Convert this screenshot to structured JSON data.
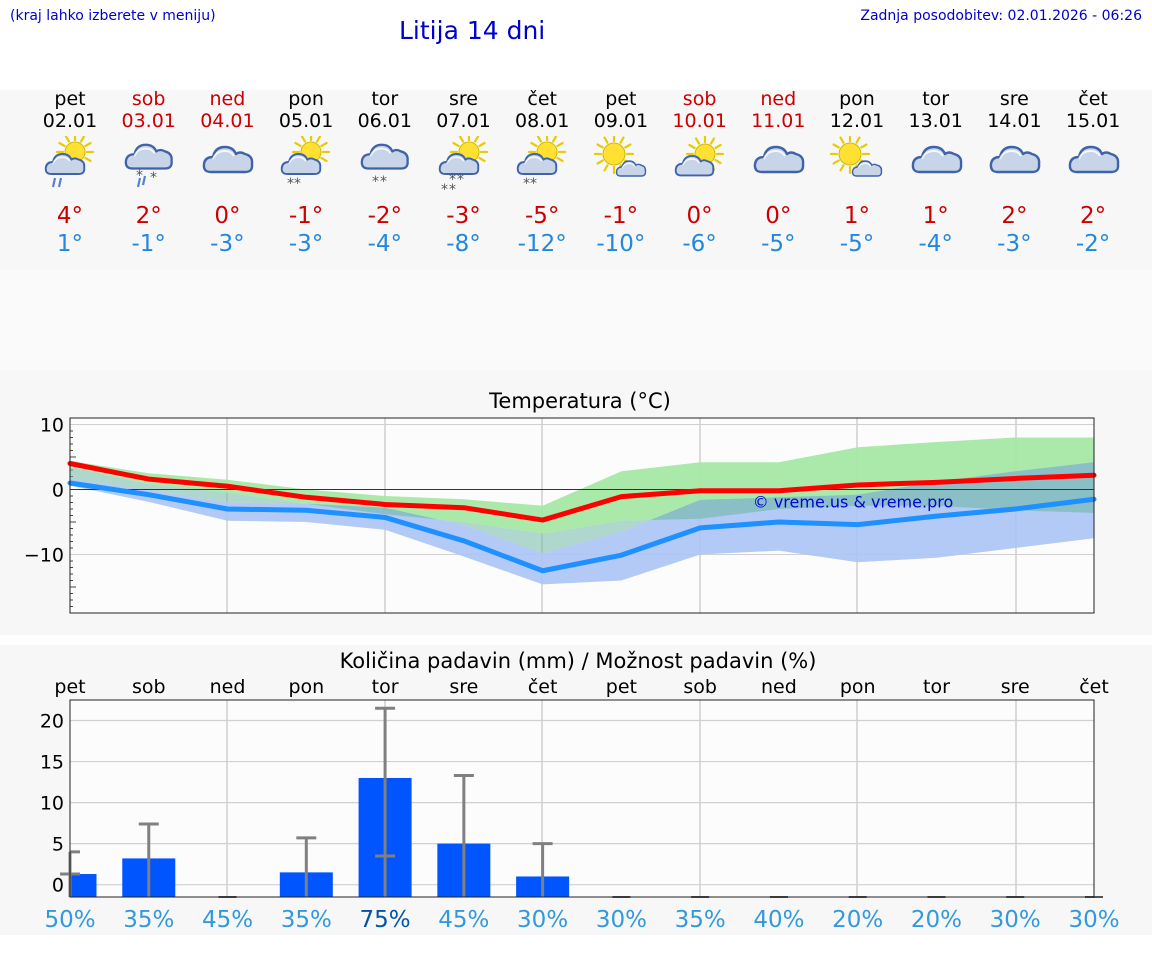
{
  "header": {
    "hint": "(kraj lahko izberete v meniju)",
    "title": "Litija 14 dni",
    "updated": "Zadnja posodobitev: 02.01.2026 - 06:26"
  },
  "days": [
    {
      "name": "pet",
      "date": "02.01",
      "weekend": false,
      "icon": "sun-cloud-rain-icon",
      "tmax": "4°",
      "tmin": "1°"
    },
    {
      "name": "sob",
      "date": "03.01",
      "weekend": true,
      "icon": "cloud-sleet-icon",
      "tmax": "2°",
      "tmin": "-1°"
    },
    {
      "name": "ned",
      "date": "04.01",
      "weekend": true,
      "icon": "cloud-icon",
      "tmax": "0°",
      "tmin": "-3°"
    },
    {
      "name": "pon",
      "date": "05.01",
      "weekend": false,
      "icon": "sun-cloud-snow-icon",
      "tmax": "-1°",
      "tmin": "-3°"
    },
    {
      "name": "tor",
      "date": "06.01",
      "weekend": false,
      "icon": "cloud-snow-icon",
      "tmax": "-2°",
      "tmin": "-4°"
    },
    {
      "name": "sre",
      "date": "07.01",
      "weekend": false,
      "icon": "sun-cloud-heavy-snow-icon",
      "tmax": "-3°",
      "tmin": "-8°"
    },
    {
      "name": "čet",
      "date": "08.01",
      "weekend": false,
      "icon": "sun-cloud-snow-icon",
      "tmax": "-5°",
      "tmin": "-12°"
    },
    {
      "name": "pet",
      "date": "09.01",
      "weekend": false,
      "icon": "sun-small-cloud-icon",
      "tmax": "-1°",
      "tmin": "-10°"
    },
    {
      "name": "sob",
      "date": "10.01",
      "weekend": true,
      "icon": "sun-cloud-icon",
      "tmax": "0°",
      "tmin": "-6°"
    },
    {
      "name": "ned",
      "date": "11.01",
      "weekend": true,
      "icon": "cloud-icon",
      "tmax": "0°",
      "tmin": "-5°"
    },
    {
      "name": "pon",
      "date": "12.01",
      "weekend": false,
      "icon": "sun-small-cloud-icon",
      "tmax": "1°",
      "tmin": "-5°"
    },
    {
      "name": "tor",
      "date": "13.01",
      "weekend": false,
      "icon": "cloud-icon",
      "tmax": "1°",
      "tmin": "-4°"
    },
    {
      "name": "sre",
      "date": "14.01",
      "weekend": false,
      "icon": "cloud-icon",
      "tmax": "2°",
      "tmin": "-3°"
    },
    {
      "name": "čet",
      "date": "15.01",
      "weekend": false,
      "icon": "cloud-icon",
      "tmax": "2°",
      "tmin": "-2°"
    }
  ],
  "colors": {
    "max": "#ff0000",
    "min": "#1e90ff",
    "max_band": "#a6e8a6",
    "min_band": "#aac4f4",
    "bar": "#0055ff",
    "whisker": "#808080",
    "weekend": "#cc0000",
    "link": "#0000cc"
  },
  "chart_data": [
    {
      "type": "line",
      "title": "Temperatura (°C)",
      "watermark": "© vreme.us & vreme.pro",
      "ylim": [
        -19,
        11
      ],
      "yticks": [
        10,
        0,
        -10
      ],
      "ytick_labels": [
        "10",
        "0",
        "−10"
      ],
      "grid": true,
      "series": [
        {
          "name": "max",
          "values": [
            4,
            1.6,
            0.5,
            -1.2,
            -2.3,
            -2.8,
            -4.7,
            -1.1,
            -0.2,
            -0.2,
            0.7,
            1.1,
            1.7,
            2.2
          ]
        },
        {
          "name": "min",
          "values": [
            1,
            -0.8,
            -3,
            -3.2,
            -4.3,
            -7.9,
            -12.5,
            -10.1,
            -5.9,
            -5,
            -5.4,
            -4.1,
            -3,
            -1.5
          ]
        }
      ],
      "bands": [
        {
          "name": "max_range",
          "upper": [
            4.4,
            2.5,
            1.5,
            0,
            -1,
            -1.5,
            -2.5,
            2.8,
            4.2,
            4.2,
            6.5,
            7.3,
            8,
            8
          ],
          "lower": [
            3.5,
            0.8,
            -0.5,
            -2.2,
            -3.8,
            -5,
            -6.8,
            -4.8,
            -4.5,
            -3,
            -2.5,
            -2.5,
            -3.2,
            -3.6
          ]
        },
        {
          "name": "min_range",
          "upper": [
            1.6,
            -0.1,
            -2,
            -2.2,
            -2.8,
            -5.5,
            -9.8,
            -6.5,
            -1.6,
            -1.2,
            -0.8,
            1.2,
            2.8,
            4.2
          ],
          "lower": [
            0.6,
            -1.9,
            -4.8,
            -5,
            -6.2,
            -10.3,
            -14.6,
            -14,
            -10,
            -9.4,
            -11.2,
            -10.5,
            -9,
            -7.5
          ]
        }
      ]
    },
    {
      "type": "bar",
      "title": "Količina padavin (mm) / Možnost padavin (%)",
      "categories": [
        "pet",
        "sob",
        "ned",
        "pon",
        "tor",
        "sre",
        "čet",
        "pet",
        "sob",
        "ned",
        "pon",
        "tor",
        "sre",
        "čet"
      ],
      "ylim": [
        -1.5,
        22.5
      ],
      "yticks": [
        20,
        15,
        10,
        5,
        0
      ],
      "values": [
        1.3,
        3.2,
        0,
        1.5,
        13,
        5,
        1,
        0,
        0,
        0,
        0,
        0,
        0,
        0
      ],
      "error_high": [
        4,
        7.4,
        0,
        5.7,
        21.5,
        13.3,
        5,
        0,
        0,
        0,
        0,
        0,
        0,
        0
      ],
      "error_low": [
        1.3,
        0,
        0,
        0,
        3.5,
        0,
        0,
        0,
        0,
        0,
        0,
        0,
        0,
        0
      ],
      "probability": [
        "50%",
        "35%",
        "45%",
        "35%",
        "75%",
        "45%",
        "30%",
        "30%",
        "35%",
        "40%",
        "20%",
        "20%",
        "30%",
        "30%"
      ]
    }
  ]
}
